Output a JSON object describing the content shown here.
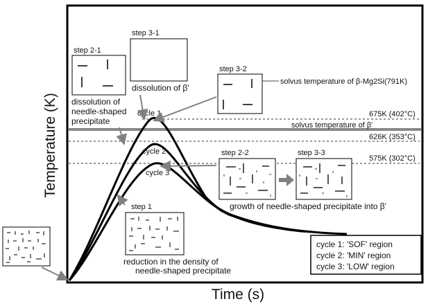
{
  "axes": {
    "ylabel": "Temperature (K)",
    "xlabel": "Time (s)"
  },
  "levels": {
    "solvus_mg2si": "solvus temperature of  β-Mg2Si(791K)",
    "t675": "675K (402°C)",
    "solvus_beta_prime": "solvus temperature of  β'",
    "t626": "626K (353°C)",
    "t575": "575K (302°C)"
  },
  "steps": {
    "s1": "step 1",
    "s21": "step 2-1",
    "s22": "step 2-2",
    "s31": "step 3-1",
    "s32": "step 3-2",
    "s33": "step 3-3"
  },
  "cycles": {
    "c1": "cycle 1",
    "c2": "cycle 2",
    "c3": "cycle 3"
  },
  "annotations": {
    "dissolution_beta_prime": "dissolution of β'",
    "dissolution_needle": [
      "dissolution of",
      "needle-shaped",
      "precipitate"
    ],
    "growth": "growth of needle-shaped precipitate into β'",
    "reduction": [
      "reduction in the density of",
      "needle-shaped precipitate"
    ]
  },
  "legend": {
    "l1": "cycle 1: 'SOF' region",
    "l2": "cycle 2: 'MIN' region",
    "l3": "cycle 3: 'LOW' region"
  },
  "colors": {
    "curve": "#000000",
    "solvus_line": "#888888",
    "arrow": "#808080"
  }
}
